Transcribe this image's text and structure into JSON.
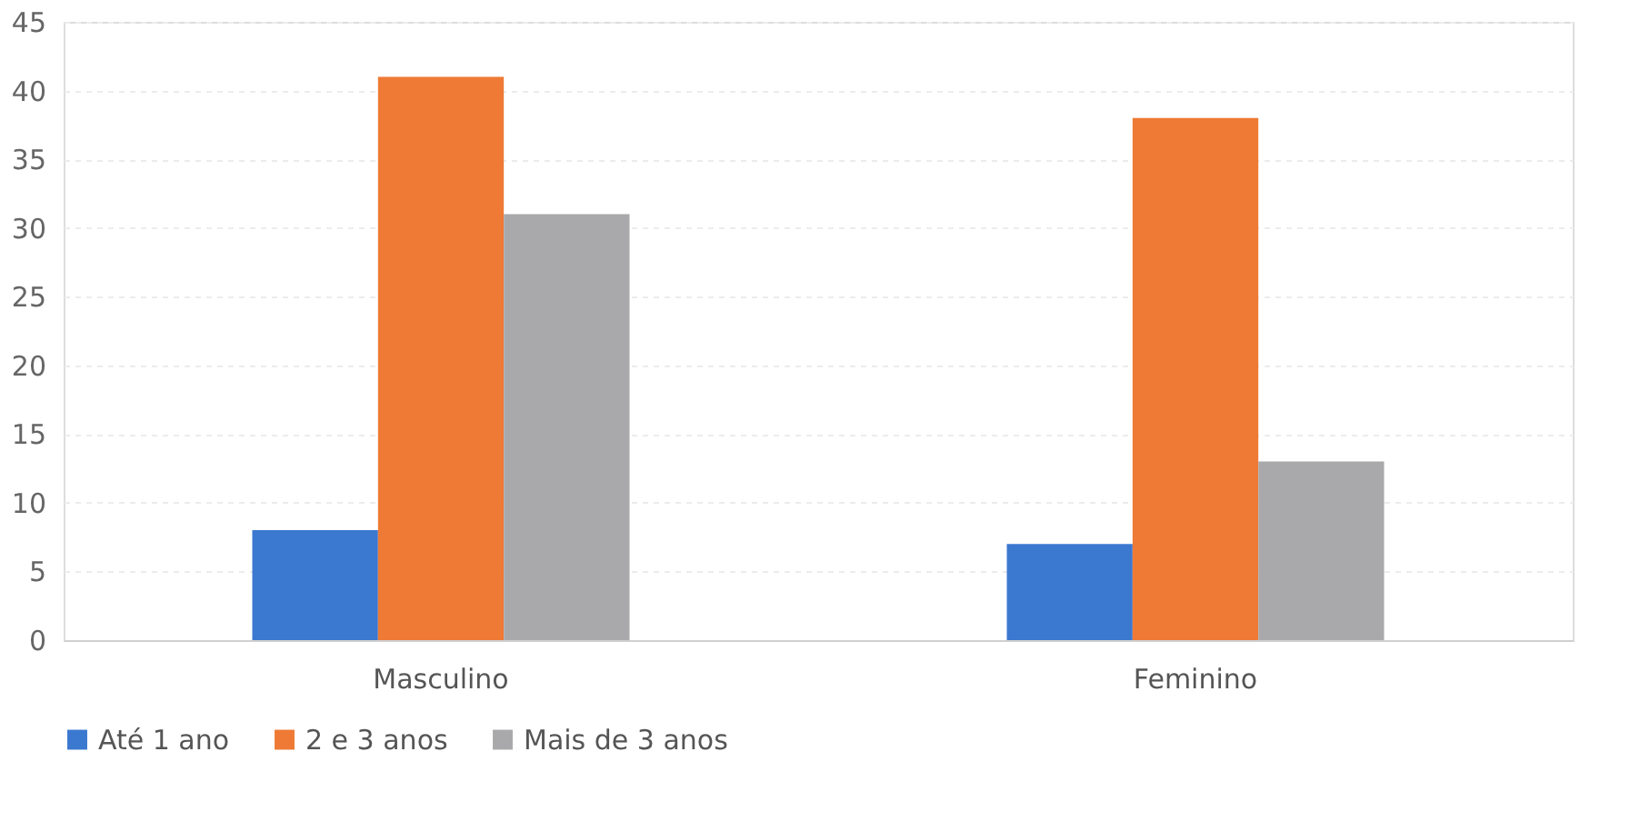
{
  "chart_data": {
    "type": "bar",
    "categories": [
      "Masculino",
      "Feminino"
    ],
    "series": [
      {
        "name": "Até 1 ano",
        "color": "#3b78d0",
        "values": [
          8,
          7
        ]
      },
      {
        "name": "2 e 3 anos",
        "color": "#ee7a35",
        "values": [
          41,
          38
        ]
      },
      {
        "name": "Mais de 3 anos",
        "color": "#a9a9ab",
        "values": [
          31,
          13
        ]
      }
    ],
    "ylim": [
      0,
      45
    ],
    "yticks": [
      0,
      5,
      10,
      15,
      20,
      25,
      30,
      35,
      40,
      45
    ],
    "grid": "y",
    "legend": "bottom"
  }
}
